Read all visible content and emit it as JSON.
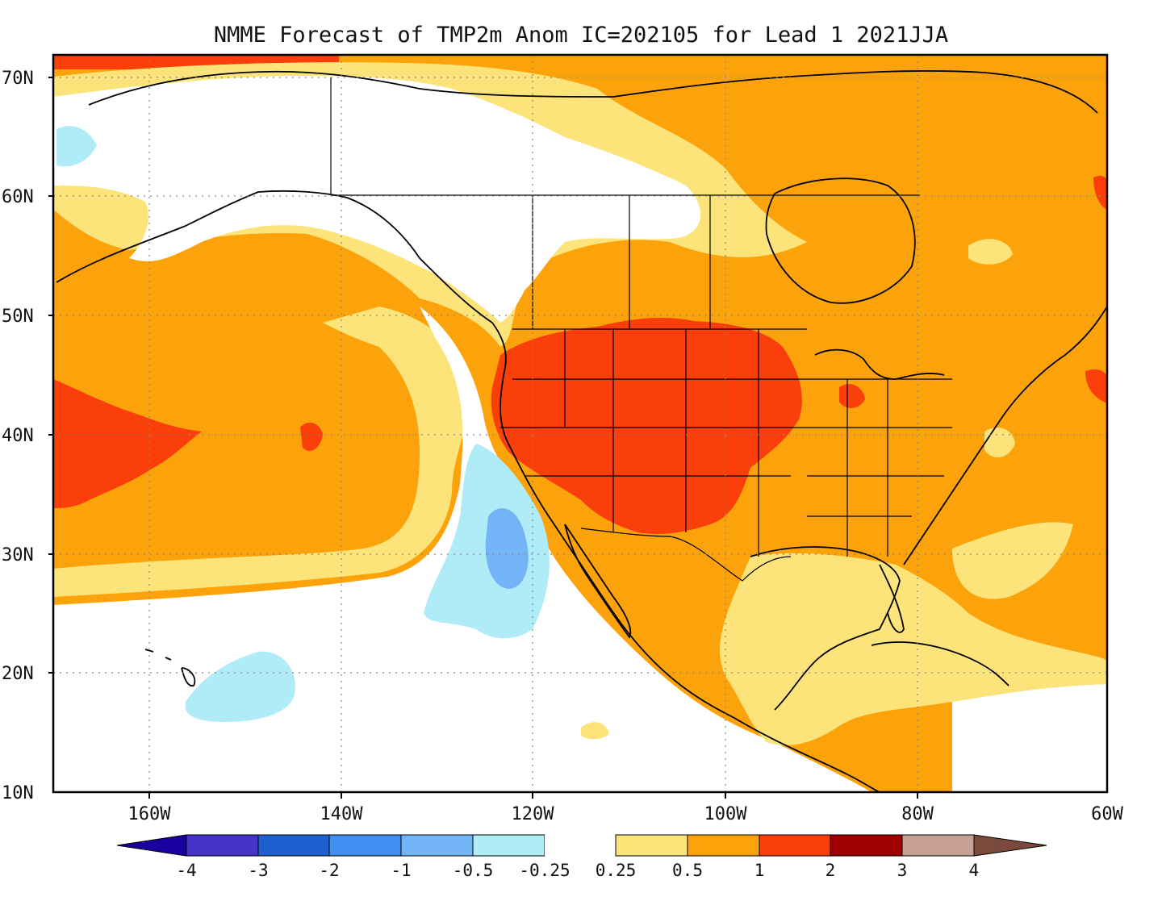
{
  "title": "NMME Forecast of TMP2m Anom IC=202105 for Lead 1 2021JJA",
  "lat_labels": [
    "70N",
    "60N",
    "50N",
    "40N",
    "30N",
    "20N",
    "10N"
  ],
  "lon_labels": [
    "160W",
    "140W",
    "120W",
    "100W",
    "80W",
    "60W"
  ],
  "legend": {
    "labels": [
      "-4",
      "-3",
      "-2",
      "-1",
      "-0.5",
      "-0.25",
      "0.25",
      "0.5",
      "1",
      "2",
      "3",
      "4"
    ],
    "colors": {
      "lt-4": "#1a00a0",
      "-4..-3": "#4633c8",
      "-3..-2": "#1f5fd0",
      "-2..-1": "#3f8ef0",
      "-1..-0.5": "#73b4f6",
      "-0.5..-0.25": "#b0ecf8",
      "-0.25..0.25": "#ffffff",
      "0.25..0.5": "#fde47a",
      "0.5..1": "#fca20a",
      "1..2": "#fb3f0a",
      "2..3": "#a00000",
      "3..4": "#c8a096",
      "gt4": "#7a4a3c"
    }
  },
  "map": {
    "region": "North America and NE Pacific",
    "lat_range": [
      10,
      72
    ],
    "lon_range": [
      -170,
      -60
    ],
    "variable": "2m temperature anomaly",
    "features": [
      {
        "name": "western-us-warm-core",
        "category": "1..2"
      },
      {
        "name": "central-pacific-warm-spot",
        "category": "1..2"
      },
      {
        "name": "west-pacific-warm-band",
        "category": "1..2"
      },
      {
        "name": "baja-cool-patch",
        "category": "-1..-0.5"
      },
      {
        "name": "hawaii-cool-patch",
        "category": "-0.5..-0.25"
      },
      {
        "name": "bering-cool-patch",
        "category": "-0.5..-0.25"
      },
      {
        "name": "alaska-neutral",
        "category": "-0.25..0.25"
      },
      {
        "name": "gulf-of-mexico-slight-warm",
        "category": "0.25..0.5"
      }
    ]
  }
}
